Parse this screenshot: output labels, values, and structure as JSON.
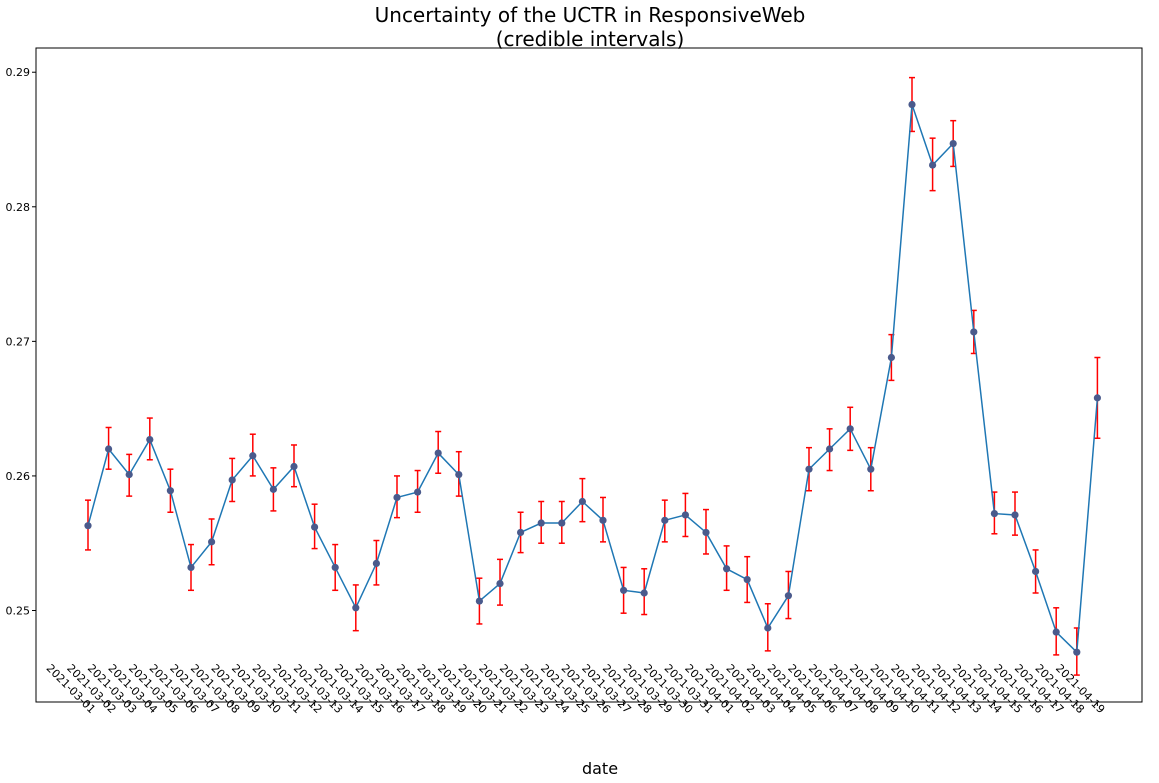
{
  "chart_data": {
    "type": "line",
    "title": "Uncertainty of the UCTR in ResponsiveWeb",
    "subtitle": "(credible intervals)",
    "xlabel": "date",
    "ylabel": "",
    "ylim": [
      0.2432,
      0.2918
    ],
    "yticks": [
      0.25,
      0.26,
      0.27,
      0.28,
      0.29
    ],
    "ytick_labels": [
      "0.25",
      "0.26",
      "0.27",
      "0.28",
      "0.29"
    ],
    "grid": false,
    "line_color": "#1f77b4",
    "marker_color": "#4a5a8c",
    "error_color": "#ff0000",
    "categories": [
      "2021-03-01",
      "2021-03-02",
      "2021-03-03",
      "2021-03-04",
      "2021-03-05",
      "2021-03-06",
      "2021-03-07",
      "2021-03-08",
      "2021-03-09",
      "2021-03-10",
      "2021-03-11",
      "2021-03-12",
      "2021-03-13",
      "2021-03-14",
      "2021-03-15",
      "2021-03-16",
      "2021-03-17",
      "2021-03-18",
      "2021-03-19",
      "2021-03-20",
      "2021-03-21",
      "2021-03-22",
      "2021-03-23",
      "2021-03-24",
      "2021-03-25",
      "2021-03-26",
      "2021-03-27",
      "2021-03-28",
      "2021-03-29",
      "2021-03-30",
      "2021-03-31",
      "2021-04-01",
      "2021-04-02",
      "2021-04-03",
      "2021-04-04",
      "2021-04-05",
      "2021-04-06",
      "2021-04-07",
      "2021-04-08",
      "2021-04-09",
      "2021-04-10",
      "2021-04-11",
      "2021-04-12",
      "2021-04-13",
      "2021-04-14",
      "2021-04-15",
      "2021-04-16",
      "2021-04-17",
      "2021-04-18",
      "2021-04-19"
    ],
    "values": [
      0.2563,
      0.262,
      0.2601,
      0.2627,
      0.2589,
      0.2532,
      0.2551,
      0.2597,
      0.2615,
      0.259,
      0.2607,
      0.2562,
      0.2532,
      0.2502,
      0.2535,
      0.2584,
      0.2588,
      0.2617,
      0.2601,
      0.2507,
      0.252,
      0.2558,
      0.2565,
      0.2565,
      0.2581,
      0.2567,
      0.2515,
      0.2513,
      0.2567,
      0.2571,
      0.2558,
      0.2531,
      0.2523,
      0.2487,
      0.2511,
      0.2605,
      0.262,
      0.2635,
      0.2605,
      0.2688,
      0.2876,
      0.2831,
      0.2847,
      0.2707,
      0.2572,
      0.2571,
      0.2529,
      0.2484,
      0.2469,
      0.2658
    ],
    "lower": [
      0.2545,
      0.2605,
      0.2585,
      0.2612,
      0.2573,
      0.2515,
      0.2534,
      0.2581,
      0.26,
      0.2574,
      0.2592,
      0.2546,
      0.2515,
      0.2485,
      0.2519,
      0.2569,
      0.2573,
      0.2602,
      0.2585,
      0.249,
      0.2504,
      0.2543,
      0.255,
      0.255,
      0.2566,
      0.2551,
      0.2498,
      0.2497,
      0.2551,
      0.2555,
      0.2542,
      0.2515,
      0.2506,
      0.247,
      0.2494,
      0.2589,
      0.2604,
      0.2619,
      0.2589,
      0.2671,
      0.2856,
      0.2812,
      0.283,
      0.2691,
      0.2557,
      0.2556,
      0.2513,
      0.2467,
      0.2452,
      0.2628
    ],
    "upper": [
      0.2582,
      0.2636,
      0.2616,
      0.2643,
      0.2605,
      0.2549,
      0.2568,
      0.2613,
      0.2631,
      0.2606,
      0.2623,
      0.2579,
      0.2549,
      0.2519,
      0.2552,
      0.26,
      0.2604,
      0.2633,
      0.2618,
      0.2524,
      0.2538,
      0.2573,
      0.2581,
      0.2581,
      0.2598,
      0.2584,
      0.2532,
      0.2531,
      0.2582,
      0.2587,
      0.2575,
      0.2548,
      0.254,
      0.2505,
      0.2529,
      0.2621,
      0.2635,
      0.2651,
      0.2621,
      0.2705,
      0.2896,
      0.2851,
      0.2864,
      0.2723,
      0.2588,
      0.2588,
      0.2545,
      0.2502,
      0.2487,
      0.2688
    ]
  }
}
